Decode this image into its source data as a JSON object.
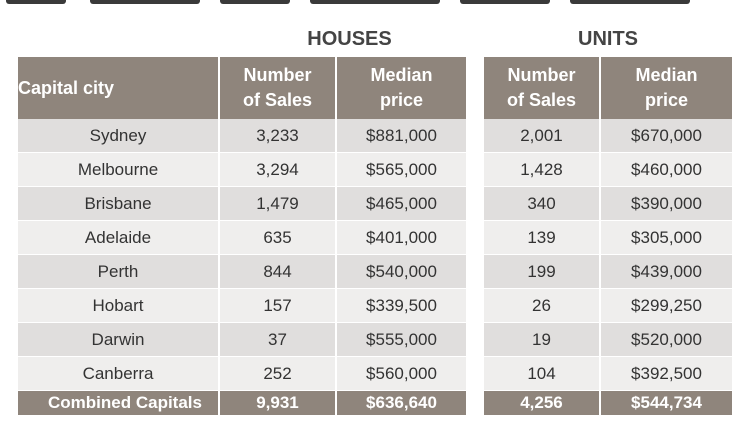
{
  "houses_title": "HOUSES",
  "units_title": "UNITS",
  "headers": {
    "city": "Capital city",
    "sales_line1": "Number",
    "sales_line2": "of Sales",
    "price_line1": "Median",
    "price_line2": "price"
  },
  "rows": [
    {
      "city": "Sydney",
      "house_sales": "3,233",
      "house_price": "$881,000",
      "unit_sales": "2,001",
      "unit_price": "$670,000"
    },
    {
      "city": "Melbourne",
      "house_sales": "3,294",
      "house_price": "$565,000",
      "unit_sales": "1,428",
      "unit_price": "$460,000"
    },
    {
      "city": "Brisbane",
      "house_sales": "1,479",
      "house_price": "$465,000",
      "unit_sales": "340",
      "unit_price": "$390,000"
    },
    {
      "city": "Adelaide",
      "house_sales": "635",
      "house_price": "$401,000",
      "unit_sales": "139",
      "unit_price": "$305,000"
    },
    {
      "city": "Perth",
      "house_sales": "844",
      "house_price": "$540,000",
      "unit_sales": "199",
      "unit_price": "$439,000"
    },
    {
      "city": "Hobart",
      "house_sales": "157",
      "house_price": "$339,500",
      "unit_sales": "26",
      "unit_price": "$299,250"
    },
    {
      "city": "Darwin",
      "house_sales": "37",
      "house_price": "$555,000",
      "unit_sales": "19",
      "unit_price": "$520,000"
    },
    {
      "city": "Canberra",
      "house_sales": "252",
      "house_price": "$560,000",
      "unit_sales": "104",
      "unit_price": "$392,500"
    }
  ],
  "total": {
    "city": "Combined Capitals",
    "house_sales": "9,931",
    "house_price": "$636,640",
    "unit_sales": "4,256",
    "unit_price": "$544,734"
  },
  "colors": {
    "header_bg": "#8f857c",
    "row_odd": "#e0dedd",
    "row_even": "#efeeed"
  }
}
